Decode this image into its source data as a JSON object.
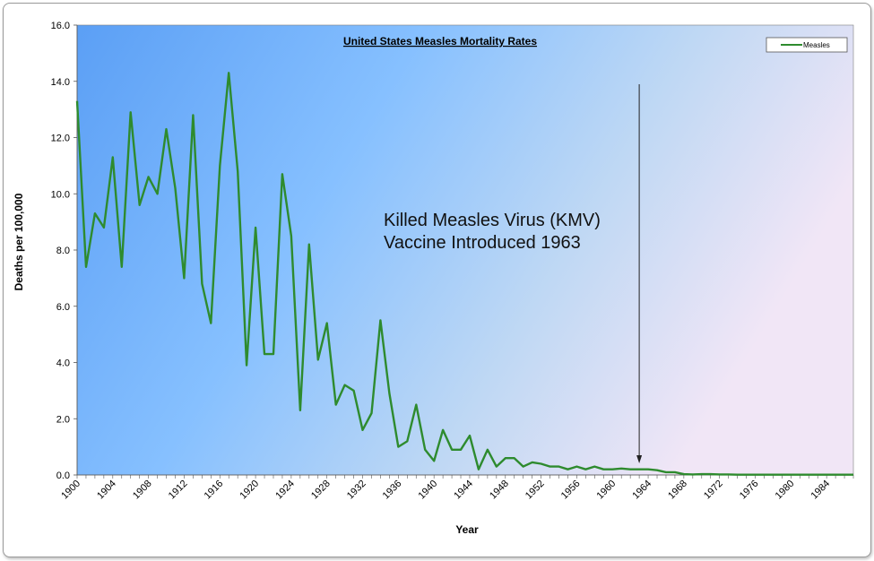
{
  "chart_data": {
    "type": "line",
    "title": "United States Measles Mortality Rates",
    "xlabel": "Year",
    "ylabel": "Deaths per 100,000",
    "xlim": [
      1900,
      1987
    ],
    "ylim": [
      0,
      16
    ],
    "y_ticks": [
      "0.0",
      "2.0",
      "4.0",
      "6.0",
      "8.0",
      "10.0",
      "12.0",
      "14.0",
      "16.0"
    ],
    "x_ticks": [
      "1900",
      "1904",
      "1908",
      "1912",
      "1916",
      "1920",
      "1924",
      "1928",
      "1932",
      "1936",
      "1940",
      "1944",
      "1948",
      "1952",
      "1956",
      "1960",
      "1964",
      "1968",
      "1972",
      "1976",
      "1980",
      "1984"
    ],
    "grid": false,
    "legend_position": "top-right",
    "colors": {
      "line": "#2e8b2e",
      "background_left": "#5b9ff5",
      "background_mid": "#86c0ff",
      "background_right": "#f1e6f6"
    },
    "series": [
      {
        "name": "Measles",
        "x": [
          1900,
          1901,
          1902,
          1903,
          1904,
          1905,
          1906,
          1907,
          1908,
          1909,
          1910,
          1911,
          1912,
          1913,
          1914,
          1915,
          1916,
          1917,
          1918,
          1919,
          1920,
          1921,
          1922,
          1923,
          1924,
          1925,
          1926,
          1927,
          1928,
          1929,
          1930,
          1931,
          1932,
          1933,
          1934,
          1935,
          1936,
          1937,
          1938,
          1939,
          1940,
          1941,
          1942,
          1943,
          1944,
          1945,
          1946,
          1947,
          1948,
          1949,
          1950,
          1951,
          1952,
          1953,
          1954,
          1955,
          1956,
          1957,
          1958,
          1959,
          1960,
          1961,
          1962,
          1963,
          1964,
          1965,
          1966,
          1967,
          1968,
          1969,
          1970,
          1971,
          1972,
          1973,
          1974,
          1975,
          1976,
          1977,
          1978,
          1979,
          1980,
          1981,
          1982,
          1983,
          1984,
          1985,
          1986,
          1987
        ],
        "values": [
          13.3,
          7.4,
          9.3,
          8.8,
          11.3,
          7.4,
          12.9,
          9.6,
          10.6,
          10.0,
          12.3,
          10.2,
          7.0,
          12.8,
          6.8,
          5.4,
          11.0,
          14.3,
          10.8,
          3.9,
          8.8,
          4.3,
          4.3,
          10.7,
          8.5,
          2.3,
          8.2,
          4.1,
          5.4,
          2.5,
          3.2,
          3.0,
          1.6,
          2.2,
          5.5,
          2.9,
          1.0,
          1.2,
          2.5,
          0.9,
          0.5,
          1.6,
          0.9,
          0.9,
          1.4,
          0.2,
          0.9,
          0.3,
          0.6,
          0.6,
          0.3,
          0.45,
          0.4,
          0.3,
          0.3,
          0.2,
          0.3,
          0.2,
          0.3,
          0.2,
          0.2,
          0.23,
          0.2,
          0.2,
          0.2,
          0.17,
          0.1,
          0.1,
          0.03,
          0.02,
          0.03,
          0.03,
          0.02,
          0.02,
          0.01,
          0.01,
          0.01,
          0.01,
          0.01,
          0.01,
          0.01,
          0.01,
          0.01,
          0.01,
          0.01,
          0.01,
          0.01,
          0.01
        ]
      }
    ],
    "annotations": [
      {
        "text_line1": "Killed Measles Virus (KMV)",
        "text_line2": "Vaccine Introduced 1963",
        "arrow_x": 1963
      }
    ]
  }
}
